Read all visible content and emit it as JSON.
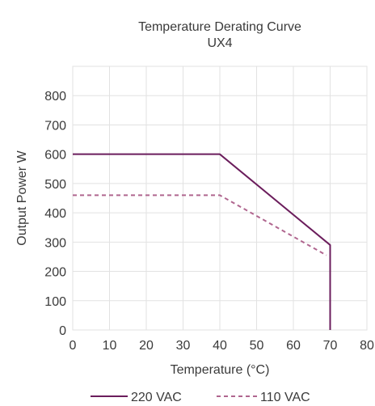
{
  "chart_data": {
    "type": "line",
    "title": "Temperature Derating Curve",
    "subtitle": "UX4",
    "xlabel": "Temperature (°C)",
    "ylabel": "Output Power W",
    "xlim": [
      0,
      80
    ],
    "ylim": [
      0,
      900
    ],
    "xticks": [
      0,
      10,
      20,
      30,
      40,
      50,
      60,
      70,
      80
    ],
    "yticks": [
      0,
      100,
      200,
      300,
      400,
      500,
      600,
      700,
      800
    ],
    "grid": true,
    "legend": "bottom",
    "series": [
      {
        "name": "220 VAC",
        "color": "#6b1d5c",
        "style": "solid",
        "x": [
          0,
          40,
          70,
          70
        ],
        "y": [
          600,
          600,
          290,
          0
        ]
      },
      {
        "name": "110 VAC",
        "color": "#b0668f",
        "style": "dashed",
        "x": [
          0,
          40,
          69
        ],
        "y": [
          460,
          460,
          255
        ]
      }
    ]
  }
}
